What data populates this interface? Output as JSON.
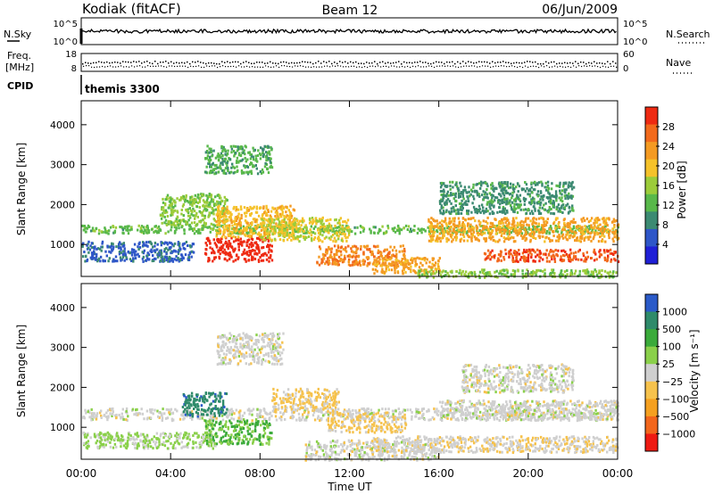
{
  "header": {
    "station": "Kodiak (fitACF)",
    "beam": "Beam 12",
    "date": "06/Jun/2009"
  },
  "nsky_panel": {
    "left_label": "N.Sky",
    "right_label": "N.Search",
    "left_ticks": [
      "10^5",
      "10^0"
    ],
    "right_ticks": [
      "10^5",
      "10^0"
    ]
  },
  "freq_panel": {
    "left_label_line1": "Freq.",
    "left_label_line2": "[MHz]",
    "right_label": "Nave",
    "left_ticks": [
      "18",
      "8"
    ],
    "right_ticks": [
      "60",
      "0"
    ]
  },
  "cpid": {
    "label": "CPID",
    "value": "themis 3300"
  },
  "x_axis": {
    "label": "Time UT",
    "ticks": [
      "00:00",
      "04:00",
      "08:00",
      "12:00",
      "16:00",
      "20:00",
      "00:00"
    ]
  },
  "power_colorbar": {
    "label": "Power [dB]",
    "ticks": [
      "28",
      "24",
      "20",
      "16",
      "12",
      "8",
      "4"
    ]
  },
  "velocity_colorbar": {
    "label": "Velocity [m s⁻¹]",
    "ticks": [
      "1000",
      "500",
      "100",
      "25",
      "−25",
      "−100",
      "−500",
      "−1000"
    ]
  },
  "chart_data": [
    {
      "type": "heatmap",
      "panel": "power",
      "ylabel": "Slant Range [km]",
      "xlabel": "Time UT",
      "xlim": [
        0,
        24
      ],
      "ylim": [
        200,
        4600
      ],
      "yticks": [
        "1000",
        "2000",
        "3000",
        "4000"
      ],
      "colorbar": {
        "label": "Power [dB]",
        "range": [
          0,
          30
        ],
        "colors": [
          "#1f1fd6",
          "#2e56c8",
          "#3c8a72",
          "#58b84a",
          "#9ccc3a",
          "#f5c22a",
          "#f49a22",
          "#f26a1c",
          "#ee2a12"
        ]
      },
      "regions": [
        {
          "t": [
            0.0,
            24.0
          ],
          "r": [
            1300,
            1500
          ],
          "value": 12
        },
        {
          "t": [
            0.0,
            5.0
          ],
          "r": [
            600,
            1100
          ],
          "value": 6
        },
        {
          "t": [
            3.5,
            6.5
          ],
          "r": [
            1500,
            2300
          ],
          "value": 14
        },
        {
          "t": [
            5.5,
            8.5
          ],
          "r": [
            600,
            1200
          ],
          "value": 29
        },
        {
          "t": [
            6.0,
            9.5
          ],
          "r": [
            1200,
            2000
          ],
          "value": 19
        },
        {
          "t": [
            5.5,
            8.5
          ],
          "r": [
            2800,
            3500
          ],
          "value": 11
        },
        {
          "t": [
            8.0,
            12.0
          ],
          "r": [
            1100,
            1700
          ],
          "value": 17
        },
        {
          "t": [
            10.5,
            14.5
          ],
          "r": [
            500,
            1000
          ],
          "value": 23
        },
        {
          "t": [
            13.0,
            16.0
          ],
          "r": [
            300,
            700
          ],
          "value": 21
        },
        {
          "t": [
            15.5,
            24.0
          ],
          "r": [
            1100,
            1700
          ],
          "value": 21
        },
        {
          "t": [
            18.0,
            24.0
          ],
          "r": [
            600,
            900
          ],
          "value": 26
        },
        {
          "t": [
            15.0,
            24.0
          ],
          "r": [
            200,
            400
          ],
          "value": 14
        },
        {
          "t": [
            16.0,
            22.0
          ],
          "r": [
            1800,
            2600
          ],
          "value": 9
        }
      ]
    },
    {
      "type": "heatmap",
      "panel": "velocity",
      "ylabel": "Slant Range [km]",
      "xlabel": "Time UT",
      "xlim": [
        0,
        24
      ],
      "ylim": [
        200,
        4600
      ],
      "yticks": [
        "1000",
        "2000",
        "3000",
        "4000"
      ],
      "colorbar": {
        "label": "Velocity [m s⁻¹]",
        "range": [
          -1000,
          1000
        ],
        "colors": [
          "#ee1a12",
          "#f2661c",
          "#f5a020",
          "#f6c24c",
          "#cfcfcf",
          "#8ad04a",
          "#3aaa3a",
          "#2e8a6a",
          "#2a5ac8"
        ]
      },
      "regions": [
        {
          "t": [
            0.0,
            24.0
          ],
          "r": [
            1200,
            1500
          ],
          "value": 0
        },
        {
          "t": [
            0.0,
            6.0
          ],
          "r": [
            500,
            900
          ],
          "value": 150
        },
        {
          "t": [
            5.5,
            8.5
          ],
          "r": [
            600,
            1200
          ],
          "value": 350
        },
        {
          "t": [
            4.5,
            6.5
          ],
          "r": [
            1300,
            1900
          ],
          "value": 700
        },
        {
          "t": [
            8.5,
            11.5
          ],
          "r": [
            1400,
            2000
          ],
          "value": -150
        },
        {
          "t": [
            11.0,
            14.5
          ],
          "r": [
            900,
            1400
          ],
          "value": -180
        },
        {
          "t": [
            13.0,
            24.0
          ],
          "r": [
            400,
            800
          ],
          "value": -60
        },
        {
          "t": [
            10.0,
            16.0
          ],
          "r": [
            200,
            700
          ],
          "value": 0
        },
        {
          "t": [
            16.0,
            24.0
          ],
          "r": [
            1200,
            1700
          ],
          "value": 0
        },
        {
          "t": [
            17.0,
            22.0
          ],
          "r": [
            1900,
            2600
          ],
          "value": 0
        },
        {
          "t": [
            6.0,
            9.0
          ],
          "r": [
            2600,
            3400
          ],
          "value": 0
        }
      ]
    }
  ]
}
